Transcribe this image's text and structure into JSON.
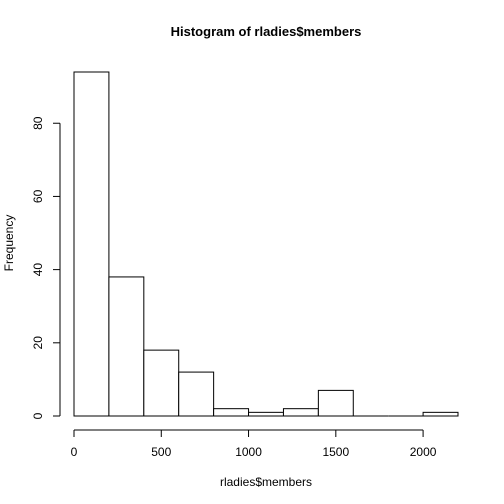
{
  "chart_data": {
    "type": "bar",
    "title": "Histogram of rladies$members",
    "xlabel": "rladies$members",
    "ylabel": "Frequency",
    "bins": [
      {
        "start": 0,
        "end": 200,
        "count": 94
      },
      {
        "start": 200,
        "end": 400,
        "count": 38
      },
      {
        "start": 400,
        "end": 600,
        "count": 18
      },
      {
        "start": 600,
        "end": 800,
        "count": 12
      },
      {
        "start": 800,
        "end": 1000,
        "count": 2
      },
      {
        "start": 1000,
        "end": 1200,
        "count": 1
      },
      {
        "start": 1200,
        "end": 1400,
        "count": 2
      },
      {
        "start": 1400,
        "end": 1600,
        "count": 7
      },
      {
        "start": 1600,
        "end": 1800,
        "count": 0
      },
      {
        "start": 1800,
        "end": 2000,
        "count": 0
      },
      {
        "start": 2000,
        "end": 2200,
        "count": 1
      }
    ],
    "xticks": [
      0,
      500,
      1000,
      1500,
      2000
    ],
    "yticks": [
      0,
      20,
      40,
      60,
      80
    ],
    "xlim": [
      0,
      2200
    ],
    "ylim": [
      0,
      94
    ],
    "grid": false
  }
}
